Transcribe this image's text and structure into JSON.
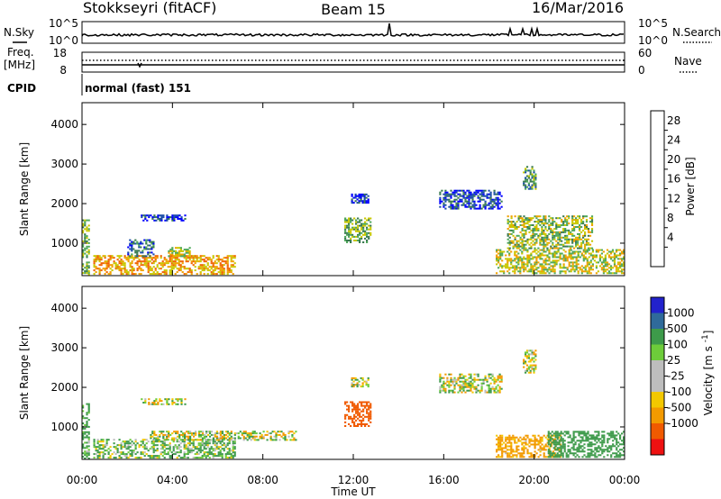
{
  "header": {
    "radar": "Stokkseyri (fitACF)",
    "beam": "Beam 15",
    "date": "16/Mar/2016"
  },
  "noise_panel": {
    "left_label": "N.Sky",
    "right_label": "N.Search",
    "y_ticks": [
      "10^5",
      "10^0"
    ]
  },
  "freq_panel": {
    "left_label_top": "Freq.",
    "left_label_unit": "[MHz]",
    "left_ticks": [
      "18",
      "8"
    ],
    "right_label": "Nave",
    "right_ticks": [
      "60",
      "0"
    ]
  },
  "cpid_panel": {
    "label": "CPID",
    "program": "normal (fast) 151"
  },
  "colors": {
    "power": [
      "#0000ff",
      "#1c4ea8",
      "#3a7a50",
      "#4fa85a",
      "#c8c800",
      "#f0a000",
      "#f06000",
      "#e81010"
    ],
    "velocity": [
      "#ee1111",
      "#f05a00",
      "#f39a00",
      "#f3c800",
      "#bdbdbd",
      "#bdbdbd",
      "#6dcc3a",
      "#3d9a4a",
      "#2f6a9a",
      "#2222cc"
    ]
  },
  "chart_data": [
    {
      "type": "heatmap",
      "title": "",
      "xlabel": "Time UT",
      "ylabel": "Slant Range [km]",
      "x_ticks": [
        "00:00",
        "04:00",
        "08:00",
        "12:00",
        "16:00",
        "20:00",
        "00:00"
      ],
      "xlim_hours": [
        0,
        24
      ],
      "y_ticks": [
        1000,
        2000,
        3000,
        4000
      ],
      "ylim_km": [
        180,
        4550
      ],
      "colorbar": {
        "label": "Power [dB]",
        "ticks": [
          "28",
          "24",
          "20",
          "16",
          "12",
          "8",
          "4"
        ],
        "range": [
          0,
          32
        ]
      },
      "scatter_regions": [
        {
          "t0": 0.0,
          "t1": 0.35,
          "r0": 180,
          "r1": 1600,
          "value": 14
        },
        {
          "t0": 0.5,
          "t1": 6.8,
          "r0": 200,
          "r1": 700,
          "value": 22
        },
        {
          "t0": 2.0,
          "t1": 3.2,
          "r0": 650,
          "r1": 1100,
          "value": 8
        },
        {
          "t0": 2.6,
          "t1": 4.6,
          "r0": 1550,
          "r1": 1720,
          "value": 4
        },
        {
          "t0": 3.8,
          "t1": 4.8,
          "r0": 650,
          "r1": 900,
          "value": 18
        },
        {
          "t0": 11.6,
          "t1": 12.8,
          "r0": 1000,
          "r1": 1650,
          "value": 14
        },
        {
          "t0": 11.9,
          "t1": 12.7,
          "r0": 2000,
          "r1": 2250,
          "value": 4
        },
        {
          "t0": 15.8,
          "t1": 18.6,
          "r0": 1850,
          "r1": 2350,
          "value": 6
        },
        {
          "t0": 18.3,
          "t1": 24.0,
          "r0": 220,
          "r1": 850,
          "value": 18
        },
        {
          "t0": 18.8,
          "t1": 22.6,
          "r0": 850,
          "r1": 1700,
          "value": 16
        },
        {
          "t0": 19.5,
          "t1": 20.1,
          "r0": 2350,
          "r1": 2950,
          "value": 12
        }
      ]
    },
    {
      "type": "heatmap",
      "title": "",
      "xlabel": "Time UT",
      "ylabel": "Slant Range [km]",
      "x_ticks": [
        "00:00",
        "04:00",
        "08:00",
        "12:00",
        "16:00",
        "20:00",
        "00:00"
      ],
      "xlim_hours": [
        0,
        24
      ],
      "y_ticks": [
        1000,
        2000,
        3000,
        4000
      ],
      "ylim_km": [
        180,
        4550
      ],
      "colorbar": {
        "label": "Velocity [m s-1]",
        "ticks": [
          "1000",
          "500",
          "100",
          "25",
          "-25",
          "-100",
          "-500",
          "-1000"
        ],
        "range": [
          -1200,
          1200
        ]
      },
      "scatter_regions": [
        {
          "t0": 0.0,
          "t1": 0.35,
          "r0": 180,
          "r1": 1600,
          "value": 200
        },
        {
          "t0": 0.5,
          "t1": 6.8,
          "r0": 200,
          "r1": 700,
          "value": 120
        },
        {
          "t0": 3.0,
          "t1": 9.5,
          "r0": 650,
          "r1": 900,
          "value": 0
        },
        {
          "t0": 2.6,
          "t1": 4.6,
          "r0": 1550,
          "r1": 1720,
          "value": 0
        },
        {
          "t0": 11.6,
          "t1": 12.8,
          "r0": 1000,
          "r1": 1650,
          "value": -700
        },
        {
          "t0": 11.9,
          "t1": 12.7,
          "r0": 2000,
          "r1": 2250,
          "value": 0
        },
        {
          "t0": 15.8,
          "t1": 18.6,
          "r0": 1850,
          "r1": 2350,
          "value": 0
        },
        {
          "t0": 18.3,
          "t1": 21.2,
          "r0": 220,
          "r1": 800,
          "value": -200
        },
        {
          "t0": 20.6,
          "t1": 24.0,
          "r0": 220,
          "r1": 900,
          "value": 300
        },
        {
          "t0": 19.5,
          "t1": 20.1,
          "r0": 2350,
          "r1": 2950,
          "value": 0
        }
      ]
    }
  ]
}
